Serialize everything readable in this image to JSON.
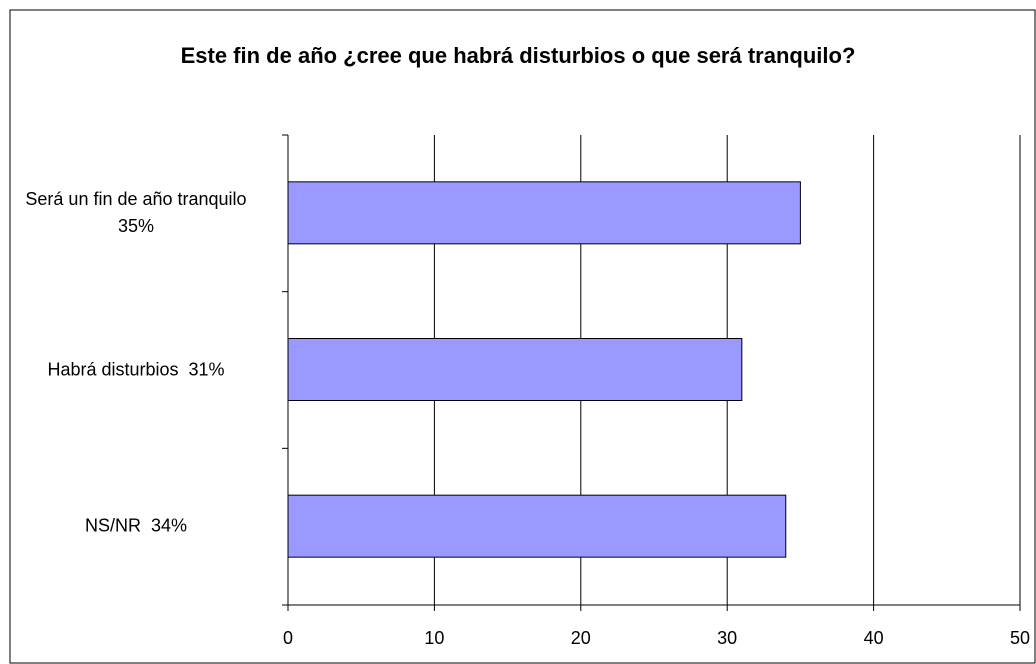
{
  "chart_data": {
    "type": "bar",
    "orientation": "horizontal",
    "title": "Este fin de año ¿cree que habrá disturbios o que será tranquilo?",
    "categories": [
      "Será un fin de año tranquilo  35%",
      "Habrá disturbios  31%",
      "NS/NR  34%"
    ],
    "values": [
      35,
      31,
      34
    ],
    "color": "#9999ff",
    "xlim": [
      0,
      50
    ],
    "xticks": [
      0,
      10,
      20,
      30,
      40,
      50
    ],
    "grid": true
  }
}
